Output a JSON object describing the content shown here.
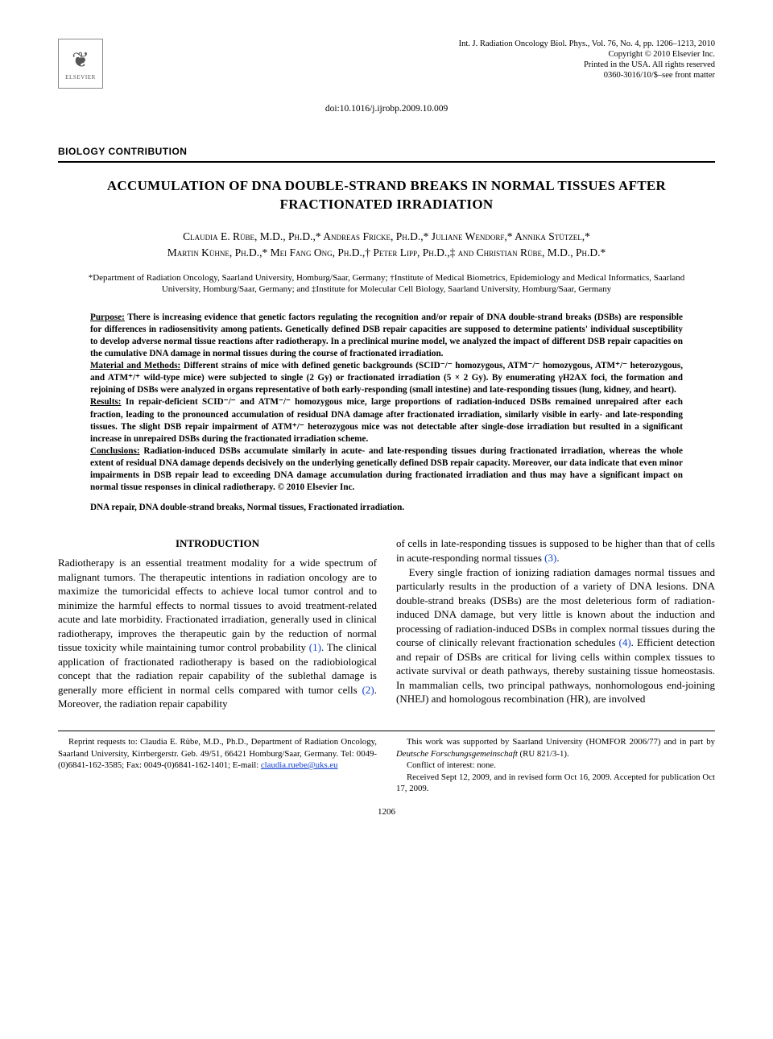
{
  "journal_meta": {
    "line1": "Int. J. Radiation Oncology Biol. Phys., Vol. 76, No. 4, pp. 1206–1213, 2010",
    "line2": "Copyright © 2010 Elsevier Inc.",
    "line3": "Printed in the USA. All rights reserved",
    "line4": "0360-3016/10/$–see front matter"
  },
  "publisher_logo": "ELSEVIER",
  "doi": "doi:10.1016/j.ijrobp.2009.10.009",
  "section_label": "BIOLOGY CONTRIBUTION",
  "title": "ACCUMULATION OF DNA DOUBLE-STRAND BREAKS IN NORMAL TISSUES AFTER FRACTIONATED IRRADIATION",
  "authors_line1": "Claudia E. Rübe, M.D., Ph.D.,* Andreas Fricke, Ph.D.,* Juliane Wendorf,* Annika Stützel,*",
  "authors_line2": "Martin Kühne, Ph.D.,* Mei Fang Ong, Ph.D.,† Peter Lipp, Ph.D.,‡ and Christian Rübe, M.D., Ph.D.*",
  "affiliations": "*Department of Radiation Oncology, Saarland University, Homburg/Saar, Germany; †Institute of Medical Biometrics, Epidemiology and Medical Informatics, Saarland University, Homburg/Saar, Germany; and ‡Institute for Molecular Cell Biology, Saarland University, Homburg/Saar, Germany",
  "abstract": {
    "purpose_hdr": "Purpose:",
    "purpose": " There is increasing evidence that genetic factors regulating the recognition and/or repair of DNA double-strand breaks (DSBs) are responsible for differences in radiosensitivity among patients. Genetically defined DSB repair capacities are supposed to determine patients' individual susceptibility to develop adverse normal tissue reactions after radiotherapy. In a preclinical murine model, we analyzed the impact of different DSB repair capacities on the cumulative DNA damage in normal tissues during the course of fractionated irradiation.",
    "methods_hdr": "Material and Methods:",
    "methods": " Different strains of mice with defined genetic backgrounds (SCID⁻/⁻ homozygous, ATM⁻/⁻ homozygous, ATM⁺/⁻ heterozygous, and ATM⁺/⁺ wild-type mice) were subjected to single (2 Gy) or fractionated irradiation (5 × 2 Gy). By enumerating γH2AX foci, the formation and rejoining of DSBs were analyzed in organs representative of both early-responding (small intestine) and late-responding tissues (lung, kidney, and heart).",
    "results_hdr": "Results:",
    "results": " In repair-deficient SCID⁻/⁻ and ATM⁻/⁻ homozygous mice, large proportions of radiation-induced DSBs remained unrepaired after each fraction, leading to the pronounced accumulation of residual DNA damage after fractionated irradiation, similarly visible in early- and late-responding tissues. The slight DSB repair impairment of ATM⁺/⁻ heterozygous mice was not detectable after single-dose irradiation but resulted in a significant increase in unrepaired DSBs during the fractionated irradiation scheme.",
    "conclusions_hdr": "Conclusions:",
    "conclusions": " Radiation-induced DSBs accumulate similarly in acute- and late-responding tissues during fractionated irradiation, whereas the whole extent of residual DNA damage depends decisively on the underlying genetically defined DSB repair capacity. Moreover, our data indicate that even minor impairments in DSB repair lead to exceeding DNA damage accumulation during fractionated irradiation and thus may have a significant impact on normal tissue responses in clinical radiotherapy.   © 2010 Elsevier Inc."
  },
  "keywords": "DNA repair, DNA double-strand breaks, Normal tissues, Fractionated irradiation.",
  "intro_heading": "INTRODUCTION",
  "body": {
    "col1_p1a": "Radiotherapy is an essential treatment modality for a wide spectrum of malignant tumors. The therapeutic intentions in radiation oncology are to maximize the tumoricidal effects to achieve local tumor control and to minimize the harmful effects to normal tissues to avoid treatment-related acute and late morbidity. Fractionated irradiation, generally used in clinical radiotherapy, improves the therapeutic gain by the reduction of normal tissue toxicity while maintaining tumor control probability ",
    "ref1": "(1)",
    "col1_p1b": ". The clinical application of fractionated radiotherapy is based on the radiobiological concept that the radiation repair capability of the sublethal damage is generally more efficient in normal cells compared with tumor cells ",
    "ref2": "(2)",
    "col1_p1c": ". Moreover, the radiation repair capability",
    "col2_p1a": "of cells in late-responding tissues is supposed to be higher than that of cells in acute-responding normal tissues ",
    "ref3": "(3)",
    "col2_p1b": ".",
    "col2_p2a": "Every single fraction of ionizing radiation damages normal tissues and particularly results in the production of a variety of DNA lesions. DNA double-strand breaks (DSBs) are the most deleterious form of radiation-induced DNA damage, but very little is known about the induction and processing of radiation-induced DSBs in complex normal tissues during the course of clinically relevant fractionation schedules ",
    "ref4": "(4)",
    "col2_p2b": ". Efficient detection and repair of DSBs are critical for living cells within complex tissues to activate survival or death pathways, thereby sustaining tissue homeostasis. In mammalian cells, two principal pathways, nonhomologous end-joining (NHEJ) and homologous recombination (HR), are involved"
  },
  "footer": {
    "reprint_a": "Reprint requests to: Claudia E. Rübe, M.D., Ph.D., Department of Radiation Oncology, Saarland University, Kirrbergerstr. Geb. 49/51, 66421 Homburg/Saar, Germany. Tel: 0049-(0)6841-162-3585; Fax: 0049-(0)6841-162-1401; E-mail: ",
    "email": "claudia.ruebe@uks.eu",
    "support_a": "This work was supported by Saarland University (HOMFOR 2006/77) and in part by ",
    "support_italic": "Deutsche Forschungsgemeinschaft",
    "support_b": " (RU 821/3-1).",
    "conflict": "Conflict of interest: none.",
    "received": "Received Sept 12, 2009, and in revised form Oct 16, 2009. Accepted for publication Oct 17, 2009."
  },
  "page_number": "1206",
  "colors": {
    "link": "#1040d0",
    "text": "#000000",
    "background": "#ffffff"
  }
}
